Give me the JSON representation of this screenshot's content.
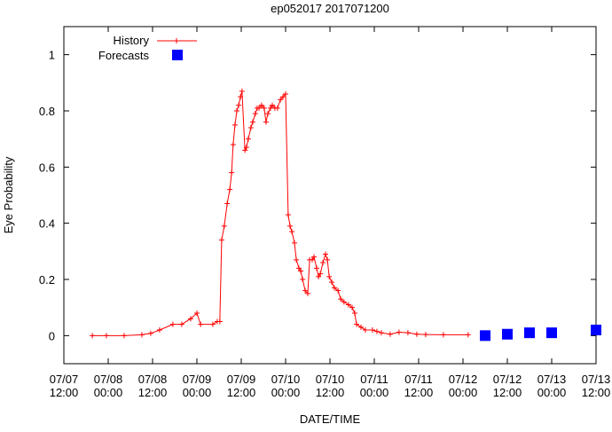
{
  "chart_data": {
    "type": "line",
    "title": "ep052017 2017071200",
    "xlabel": "DATE/TIME",
    "ylabel": "Eye Probability",
    "x_units": "hours since 07/07 12:00",
    "xlim": [
      0,
      144
    ],
    "ylim": [
      -0.1,
      1.1
    ],
    "grid": false,
    "legend_position": "top-left",
    "yticks": [
      0,
      0.2,
      0.4,
      0.6,
      0.8,
      1
    ],
    "ytick_labels": [
      "0",
      "0.2",
      "0.4",
      "0.6",
      "0.8",
      "1"
    ],
    "xticks": [
      0,
      12,
      24,
      36,
      48,
      60,
      72,
      84,
      96,
      108,
      120,
      132,
      144
    ],
    "xtick_labels": [
      [
        "07/07",
        "12:00"
      ],
      [
        "07/08",
        "00:00"
      ],
      [
        "07/08",
        "12:00"
      ],
      [
        "07/09",
        "00:00"
      ],
      [
        "07/09",
        "12:00"
      ],
      [
        "07/10",
        "00:00"
      ],
      [
        "07/10",
        "12:00"
      ],
      [
        "07/11",
        "00:00"
      ],
      [
        "07/11",
        "12:00"
      ],
      [
        "07/12",
        "00:00"
      ],
      [
        "07/12",
        "12:00"
      ],
      [
        "07/13",
        "00:00"
      ],
      [
        "07/13",
        "12:00"
      ]
    ],
    "series": [
      {
        "name": "History",
        "color": "#ff0000",
        "style": "linespoints-cross",
        "points": [
          [
            7.7,
            0
          ],
          [
            11.5,
            0
          ],
          [
            16.3,
            0
          ],
          [
            21.1,
            0.003
          ],
          [
            23.5,
            0.008
          ],
          [
            25.9,
            0.02
          ],
          [
            29.5,
            0.04
          ],
          [
            31.9,
            0.04
          ],
          [
            34.3,
            0.06
          ],
          [
            36,
            0.08
          ],
          [
            37,
            0.04
          ],
          [
            40.3,
            0.04
          ],
          [
            41.5,
            0.05
          ],
          [
            42.2,
            0.05
          ],
          [
            42.7,
            0.34
          ],
          [
            43.4,
            0.39
          ],
          [
            44.2,
            0.47
          ],
          [
            44.9,
            0.52
          ],
          [
            45.4,
            0.58
          ],
          [
            45.8,
            0.68
          ],
          [
            46.3,
            0.75
          ],
          [
            46.8,
            0.8
          ],
          [
            47.3,
            0.82
          ],
          [
            47.8,
            0.85
          ],
          [
            48.2,
            0.87
          ],
          [
            49,
            0.66
          ],
          [
            49.4,
            0.67
          ],
          [
            49.9,
            0.7
          ],
          [
            50.6,
            0.74
          ],
          [
            51.1,
            0.76
          ],
          [
            51.8,
            0.79
          ],
          [
            52.3,
            0.81
          ],
          [
            52.8,
            0.81
          ],
          [
            53.5,
            0.82
          ],
          [
            54.2,
            0.81
          ],
          [
            54.7,
            0.76
          ],
          [
            55.2,
            0.79
          ],
          [
            55.9,
            0.81
          ],
          [
            56.4,
            0.82
          ],
          [
            57.1,
            0.81
          ],
          [
            57.8,
            0.81
          ],
          [
            58.6,
            0.84
          ],
          [
            59.3,
            0.85
          ],
          [
            60,
            0.86
          ],
          [
            60.7,
            0.43
          ],
          [
            61.2,
            0.39
          ],
          [
            61.7,
            0.37
          ],
          [
            62.4,
            0.33
          ],
          [
            62.9,
            0.27
          ],
          [
            63.6,
            0.24
          ],
          [
            64.1,
            0.23
          ],
          [
            64.6,
            0.2
          ],
          [
            65.3,
            0.16
          ],
          [
            66,
            0.15
          ],
          [
            66.5,
            0.27
          ],
          [
            67.2,
            0.27
          ],
          [
            67.7,
            0.28
          ],
          [
            68.4,
            0.24
          ],
          [
            68.9,
            0.21
          ],
          [
            69.4,
            0.22
          ],
          [
            70.1,
            0.26
          ],
          [
            70.8,
            0.29
          ],
          [
            71.3,
            0.27
          ],
          [
            71.8,
            0.21
          ],
          [
            72.5,
            0.19
          ],
          [
            73.2,
            0.17
          ],
          [
            74.2,
            0.16
          ],
          [
            74.9,
            0.13
          ],
          [
            75.8,
            0.12
          ],
          [
            77,
            0.11
          ],
          [
            78,
            0.1
          ],
          [
            78.7,
            0.08
          ],
          [
            79.2,
            0.04
          ],
          [
            80.4,
            0.03
          ],
          [
            81.6,
            0.02
          ],
          [
            83.5,
            0.02
          ],
          [
            84.7,
            0.015
          ],
          [
            85.9,
            0.01
          ],
          [
            88.3,
            0.005
          ],
          [
            90.7,
            0.012
          ],
          [
            93.1,
            0.01
          ],
          [
            95.5,
            0.005
          ],
          [
            97.9,
            0.004
          ],
          [
            102.7,
            0.003
          ],
          [
            109.4,
            0.003
          ]
        ]
      },
      {
        "name": "Forecasts",
        "color": "#0000ff",
        "style": "points-square",
        "points": [
          [
            114,
            0
          ],
          [
            120,
            0.005
          ],
          [
            126,
            0.01
          ],
          [
            132,
            0.01
          ],
          [
            144,
            0.02
          ]
        ]
      }
    ]
  }
}
